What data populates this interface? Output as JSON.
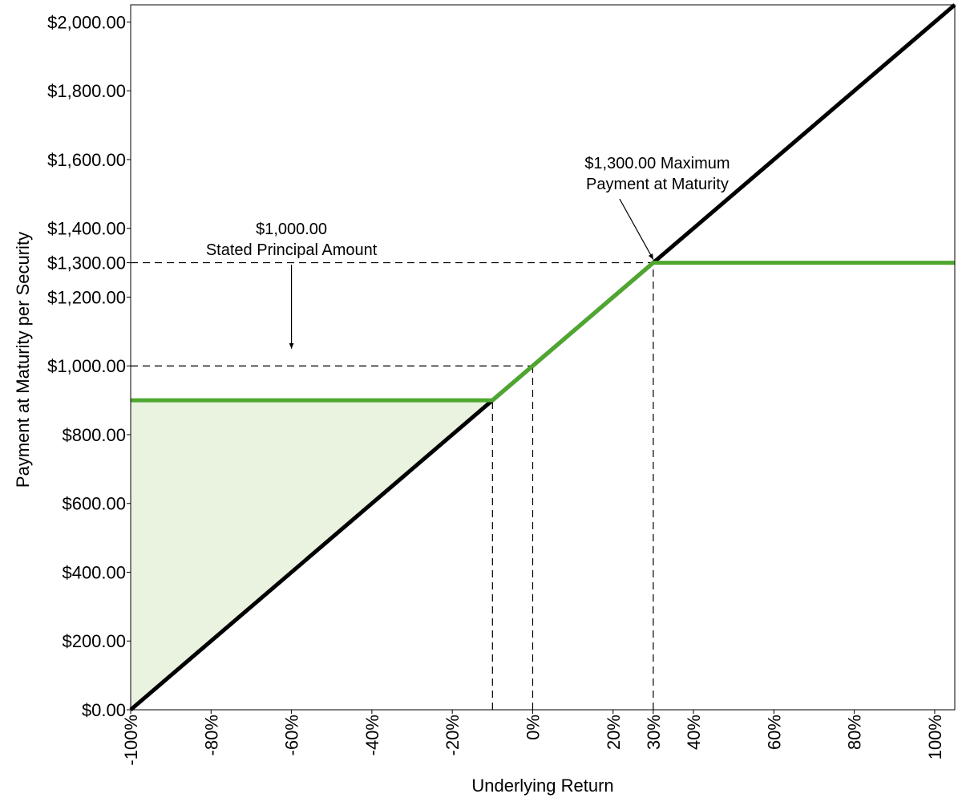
{
  "chart_data": {
    "type": "line",
    "xlabel": "Underlying Return",
    "ylabel": "Payment at Maturity per Security",
    "xlim": [
      -100,
      105
    ],
    "ylim": [
      0,
      2050
    ],
    "x_ticks": [
      {
        "value": -100,
        "label": "-100%"
      },
      {
        "value": -80,
        "label": "-80%"
      },
      {
        "value": -60,
        "label": "-60%"
      },
      {
        "value": -40,
        "label": "-40%"
      },
      {
        "value": -20,
        "label": "-20%"
      },
      {
        "value": 0,
        "label": "0%"
      },
      {
        "value": 20,
        "label": "20%"
      },
      {
        "value": 30,
        "label": "30%"
      },
      {
        "value": 40,
        "label": "40%"
      },
      {
        "value": 60,
        "label": "60%"
      },
      {
        "value": 80,
        "label": "80%"
      },
      {
        "value": 100,
        "label": "100%"
      }
    ],
    "y_ticks": [
      {
        "value": 0,
        "label": "$0.00"
      },
      {
        "value": 200,
        "label": "$200.00"
      },
      {
        "value": 400,
        "label": "$400.00"
      },
      {
        "value": 600,
        "label": "$600.00"
      },
      {
        "value": 800,
        "label": "$800.00"
      },
      {
        "value": 1000,
        "label": "$1,000.00"
      },
      {
        "value": 1200,
        "label": "$1,200.00"
      },
      {
        "value": 1300,
        "label": "$1,300.00"
      },
      {
        "value": 1400,
        "label": "$1,400.00"
      },
      {
        "value": 1600,
        "label": "$1,600.00"
      },
      {
        "value": 1800,
        "label": "$1,800.00"
      },
      {
        "value": 2000,
        "label": "$2,000.00"
      }
    ],
    "series": [
      {
        "color": "#000000",
        "x": [
          -100,
          105
        ],
        "y": [
          0,
          2050
        ]
      },
      {
        "color": "#4ea72e",
        "x": [
          -100,
          -10,
          30,
          105
        ],
        "y": [
          900,
          900,
          1300,
          1300
        ]
      }
    ],
    "shaded_region": {
      "color": "#eaf2e0",
      "x": [
        -100,
        -10
      ],
      "lower": [
        0,
        900
      ],
      "upper": [
        900,
        900
      ]
    },
    "reference_lines": [
      {
        "orientation": "horizontal",
        "y": 1300,
        "x_end": 30
      },
      {
        "orientation": "horizontal",
        "y": 1000,
        "x_end": 0
      },
      {
        "orientation": "vertical",
        "x": -10,
        "y_end": 900
      },
      {
        "orientation": "vertical",
        "x": 0,
        "y_end": 1000
      },
      {
        "orientation": "vertical",
        "x": 30,
        "y_end": 1300
      }
    ],
    "annotations": [
      {
        "lines": [
          "$1,000.00",
          "Stated Principal Amount"
        ],
        "text_x": -60,
        "arrow_to": [
          -60,
          1050
        ]
      },
      {
        "lines": [
          "$1,300.00 Maximum",
          "Payment at Maturity"
        ],
        "text_x": 31,
        "arrow_to": [
          30,
          1300
        ]
      }
    ],
    "grid": false,
    "legend": "none"
  }
}
